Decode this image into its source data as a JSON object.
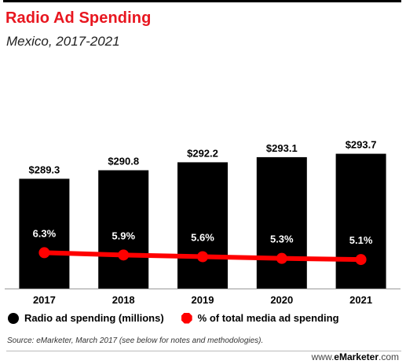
{
  "title": "Radio Ad Spending",
  "subtitle": "Mexico, 2017-2021",
  "source": "Source: eMarketer, March 2017 (see below for notes and methodologies).",
  "brand": {
    "prefix": "www.",
    "name": "eMarketer",
    "suffix": ".com"
  },
  "colors": {
    "bar": "#000000",
    "line": "#ff0000",
    "title": "#e8161f"
  },
  "chart_data": {
    "type": "bar",
    "categories": [
      "2017",
      "2018",
      "2019",
      "2020",
      "2021"
    ],
    "series": [
      {
        "name": "Radio ad spending (millions)",
        "type": "bar",
        "values": [
          289.3,
          290.8,
          292.2,
          293.1,
          293.7
        ],
        "labels": [
          "$289.3",
          "$290.8",
          "$292.2",
          "$293.1",
          "$293.7"
        ]
      },
      {
        "name": "% of total media ad spending",
        "type": "line",
        "values": [
          6.3,
          5.9,
          5.6,
          5.3,
          5.1
        ],
        "labels": [
          "6.3%",
          "5.9%",
          "5.6%",
          "5.3%",
          "5.1%"
        ]
      }
    ],
    "title": "Radio Ad Spending",
    "subtitle": "Mexico, 2017-2021",
    "xlabel": "",
    "ylabel": "",
    "ylim_bar": [
      270,
      300
    ],
    "ylim_line": [
      0,
      30
    ],
    "grid": false,
    "legend": "bottom-left"
  }
}
